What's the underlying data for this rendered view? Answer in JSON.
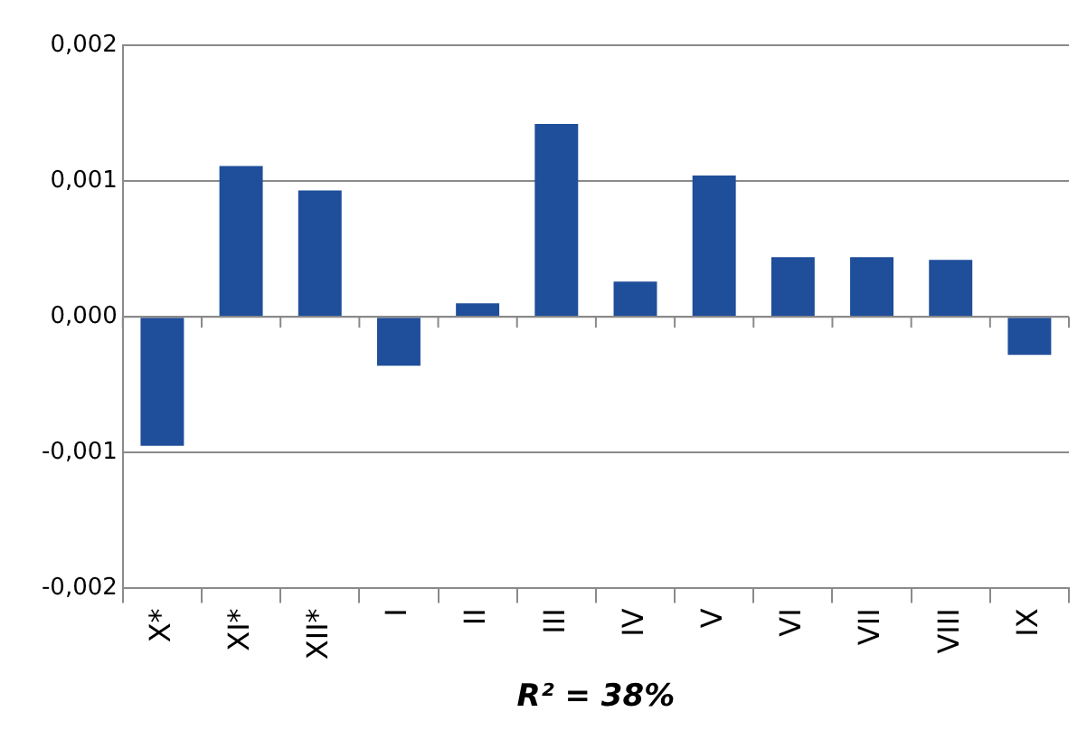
{
  "chart_data": {
    "type": "bar",
    "xlabel": "R² = 38%",
    "categories": [
      "X*",
      "XI*",
      "XII*",
      "I",
      "II",
      "III",
      "IV",
      "V",
      "VI",
      "VII",
      "VIII",
      "IX"
    ],
    "values": [
      -0.00095,
      0.00111,
      0.00093,
      -0.00036,
      0.0001,
      0.00142,
      0.00026,
      0.00104,
      0.00044,
      0.00044,
      0.00042,
      -0.00028
    ],
    "color": "#1f4e9a",
    "ylim": [
      -0.002,
      0.002
    ],
    "yticks": [
      {
        "value": -0.002,
        "label": "-0,002"
      },
      {
        "value": -0.001,
        "label": "-0,001"
      },
      {
        "value": 0,
        "label": "0,000"
      },
      {
        "value": 0.001,
        "label": "0,001"
      },
      {
        "value": 0.002,
        "label": "0,002"
      }
    ],
    "grid": "y",
    "legend": false
  }
}
